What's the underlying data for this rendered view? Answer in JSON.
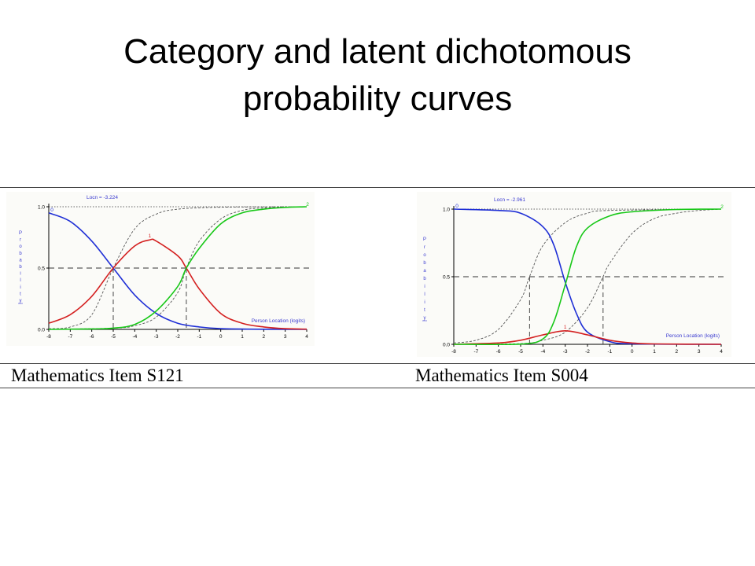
{
  "title": {
    "line1": "Category and latent dichotomous",
    "line2": "probability curves"
  },
  "colors": {
    "category_0": "#1f2fd6",
    "category_1": "#d42020",
    "category_2": "#18c818",
    "latent": "#555555",
    "annotation": "#3a3ad0"
  },
  "chart_data": [
    {
      "type": "line",
      "caption": "Mathematics Item S121",
      "location_label": "Locn = -3.224",
      "xlabel": "Person Location (logits)",
      "ylabel": "Probability",
      "xlim": [
        -8,
        4
      ],
      "ylim": [
        0.0,
        1.0
      ],
      "x_ticks": [
        "-8",
        "-7",
        "-6",
        "-5",
        "-4",
        "-3",
        "-2",
        "-1",
        "0",
        "1",
        "2",
        "3",
        "4"
      ],
      "y_ticks": [
        "0.0",
        "0.5",
        "1.0"
      ],
      "thresholds": [
        -5.0,
        -1.6
      ],
      "series": [
        {
          "name": "0",
          "points": [
            [
              -8,
              0.95
            ],
            [
              -7,
              0.88
            ],
            [
              -6,
              0.72
            ],
            [
              -5,
              0.5
            ],
            [
              -4,
              0.28
            ],
            [
              -3,
              0.13
            ],
            [
              -2,
              0.05
            ],
            [
              -1,
              0.02
            ],
            [
              0,
              0.006
            ],
            [
              2,
              0.001
            ],
            [
              4,
              0.0
            ]
          ]
        },
        {
          "name": "1",
          "points": [
            [
              -8,
              0.05
            ],
            [
              -7,
              0.12
            ],
            [
              -6,
              0.27
            ],
            [
              -5,
              0.5
            ],
            [
              -4,
              0.68
            ],
            [
              -3.3,
              0.73
            ],
            [
              -3,
              0.72
            ],
            [
              -2,
              0.6
            ],
            [
              -1.6,
              0.5
            ],
            [
              -1,
              0.33
            ],
            [
              0,
              0.13
            ],
            [
              1,
              0.05
            ],
            [
              2,
              0.02
            ],
            [
              3,
              0.006
            ],
            [
              4,
              0.002
            ]
          ]
        },
        {
          "name": "2",
          "points": [
            [
              -8,
              0.0
            ],
            [
              -6,
              0.004
            ],
            [
              -5,
              0.01
            ],
            [
              -4,
              0.04
            ],
            [
              -3,
              0.15
            ],
            [
              -2,
              0.35
            ],
            [
              -1.6,
              0.5
            ],
            [
              -1,
              0.66
            ],
            [
              0,
              0.86
            ],
            [
              1,
              0.95
            ],
            [
              2,
              0.98
            ],
            [
              3,
              0.995
            ],
            [
              4,
              1.0
            ]
          ]
        }
      ],
      "latent_curves": [
        {
          "points": [
            [
              -8,
              0.005
            ],
            [
              -7,
              0.02
            ],
            [
              -6,
              0.12
            ],
            [
              -5,
              0.5
            ],
            [
              -4,
              0.82
            ],
            [
              -3,
              0.94
            ],
            [
              -2,
              0.98
            ],
            [
              0,
              0.996
            ],
            [
              4,
              1.0
            ]
          ]
        },
        {
          "points": [
            [
              -8,
              0.0
            ],
            [
              -5,
              0.01
            ],
            [
              -4,
              0.03
            ],
            [
              -3,
              0.1
            ],
            [
              -2,
              0.3
            ],
            [
              -1.6,
              0.5
            ],
            [
              -1,
              0.72
            ],
            [
              0,
              0.9
            ],
            [
              1,
              0.97
            ],
            [
              2,
              0.99
            ],
            [
              4,
              1.0
            ]
          ]
        }
      ]
    },
    {
      "type": "line",
      "caption": "Mathematics Item S004",
      "location_label": "Locn = -2.961",
      "xlabel": "Person Location (logits)",
      "ylabel": "Probability",
      "xlim": [
        -8,
        4
      ],
      "ylim": [
        0.0,
        1.0
      ],
      "x_ticks": [
        "-8",
        "-7",
        "-6",
        "-5",
        "-4",
        "-3",
        "-2",
        "-1",
        "0",
        "1",
        "2",
        "3",
        "4"
      ],
      "y_ticks": [
        "0.0",
        "0.5",
        "1.0"
      ],
      "thresholds": [
        -4.6,
        -1.3
      ],
      "series": [
        {
          "name": "0",
          "points": [
            [
              -8,
              1.0
            ],
            [
              -6,
              0.99
            ],
            [
              -5,
              0.97
            ],
            [
              -4,
              0.87
            ],
            [
              -3.5,
              0.73
            ],
            [
              -3,
              0.46
            ],
            [
              -2.5,
              0.23
            ],
            [
              -2,
              0.09
            ],
            [
              -1,
              0.02
            ],
            [
              0,
              0.004
            ],
            [
              4,
              0.0
            ]
          ]
        },
        {
          "name": "1",
          "points": [
            [
              -8,
              0.0
            ],
            [
              -6,
              0.01
            ],
            [
              -5,
              0.03
            ],
            [
              -4,
              0.07
            ],
            [
              -3,
              0.1
            ],
            [
              -2,
              0.07
            ],
            [
              -1,
              0.03
            ],
            [
              0,
              0.01
            ],
            [
              1,
              0.003
            ],
            [
              4,
              0.0
            ]
          ]
        },
        {
          "name": "2",
          "points": [
            [
              -8,
              0.0
            ],
            [
              -5,
              0.002
            ],
            [
              -4,
              0.04
            ],
            [
              -3.5,
              0.17
            ],
            [
              -3,
              0.44
            ],
            [
              -2.5,
              0.72
            ],
            [
              -2,
              0.86
            ],
            [
              -1,
              0.95
            ],
            [
              0,
              0.98
            ],
            [
              2,
              0.997
            ],
            [
              4,
              1.0
            ]
          ]
        }
      ],
      "latent_curves": [
        {
          "points": [
            [
              -8,
              0.01
            ],
            [
              -7,
              0.03
            ],
            [
              -6,
              0.11
            ],
            [
              -5,
              0.33
            ],
            [
              -4.6,
              0.5
            ],
            [
              -4,
              0.73
            ],
            [
              -3,
              0.9
            ],
            [
              -2,
              0.97
            ],
            [
              -1,
              0.99
            ],
            [
              4,
              1.0
            ]
          ]
        },
        {
          "points": [
            [
              -8,
              0.0
            ],
            [
              -5,
              0.005
            ],
            [
              -4,
              0.03
            ],
            [
              -3,
              0.09
            ],
            [
              -2,
              0.27
            ],
            [
              -1.3,
              0.5
            ],
            [
              -1,
              0.6
            ],
            [
              0,
              0.82
            ],
            [
              1,
              0.93
            ],
            [
              2,
              0.97
            ],
            [
              3,
              0.99
            ],
            [
              4,
              1.0
            ]
          ]
        }
      ]
    }
  ]
}
